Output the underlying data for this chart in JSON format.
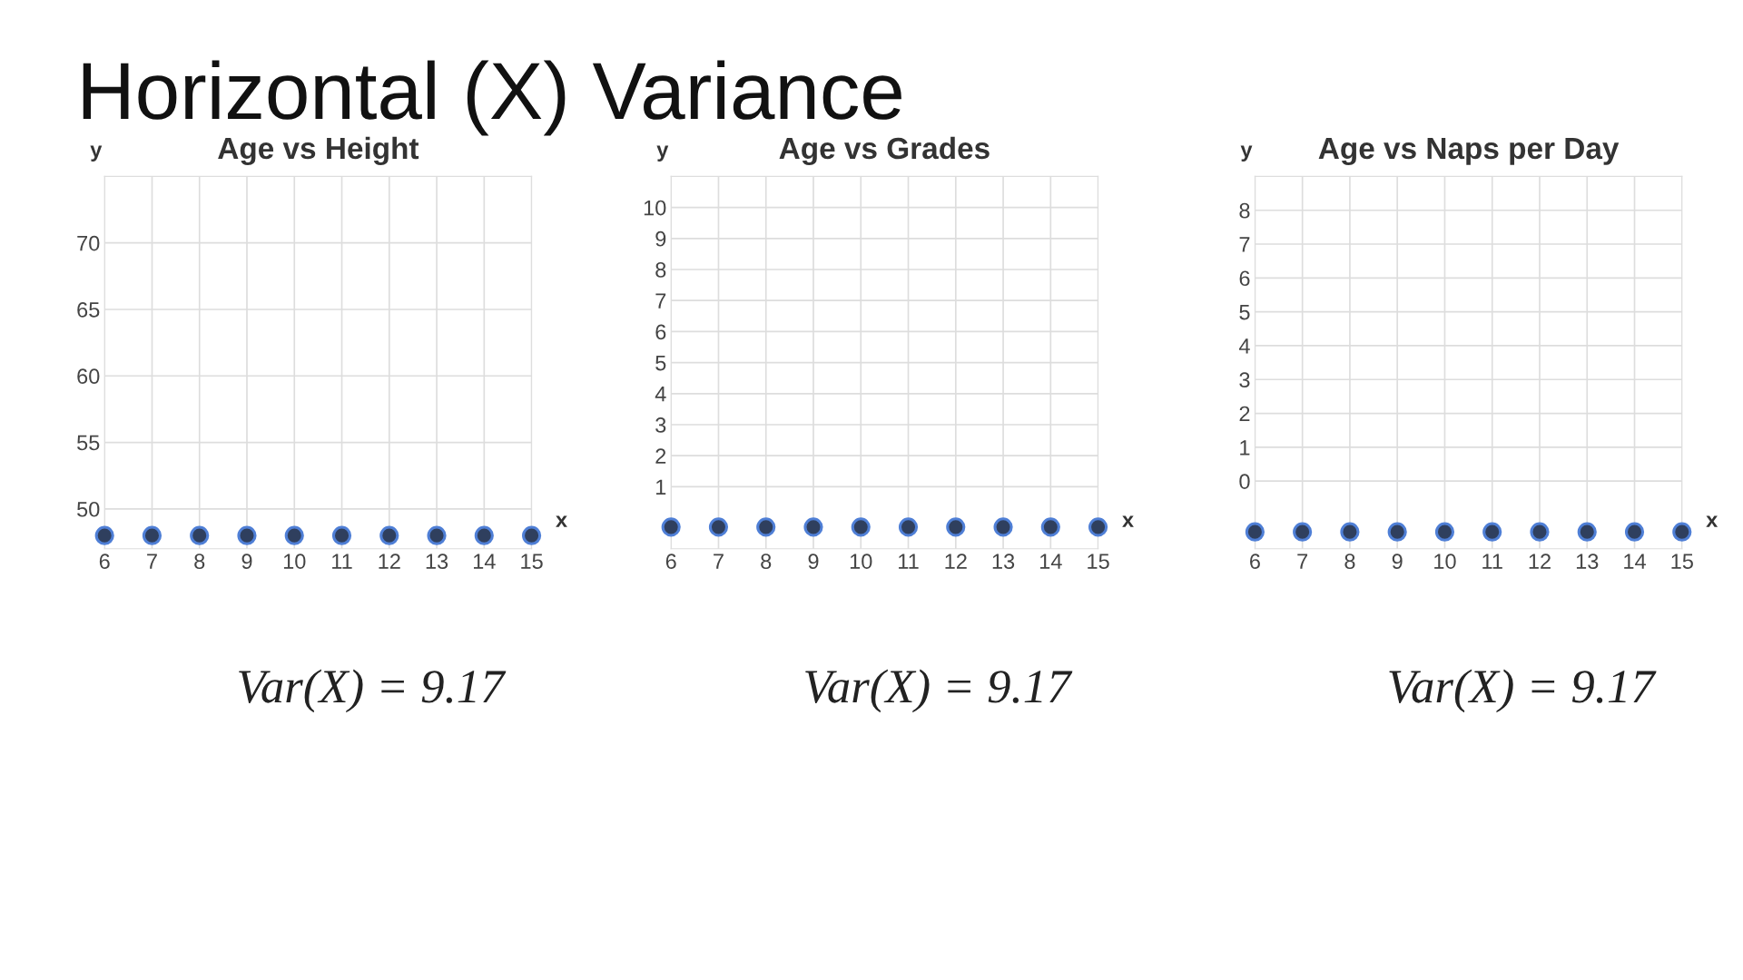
{
  "chart_data": [
    {
      "type": "scatter",
      "title": "Age vs Height",
      "xlabel": "x",
      "ylabel": "y",
      "annotations": [
        "Horizontal (X) Variance",
        "Var(X) = 9.17"
      ],
      "x": [
        6,
        7,
        8,
        9,
        10,
        11,
        12,
        13,
        14,
        15
      ],
      "values": [
        48,
        48,
        48,
        48,
        48,
        48,
        48,
        48,
        48,
        48
      ],
      "color": "#2f3f5e",
      "xlim": [
        6,
        15
      ],
      "xticks": [
        6,
        7,
        8,
        9,
        10,
        11,
        12,
        13,
        14,
        15
      ],
      "ylim": [
        47,
        75
      ],
      "yticks": [
        50,
        55,
        60,
        65,
        70
      ],
      "grid": true,
      "marker": "circle"
    },
    {
      "type": "scatter",
      "title": "Age vs Grades",
      "xlabel": "x",
      "ylabel": "y",
      "annotations": [
        "Var(X) = 9.17"
      ],
      "x": [
        6,
        7,
        8,
        9,
        10,
        11,
        12,
        13,
        14,
        15
      ],
      "values": [
        -0.3,
        -0.3,
        -0.3,
        -0.3,
        -0.3,
        -0.3,
        -0.3,
        -0.3,
        -0.3,
        -0.3
      ],
      "color": "#2f3f5e",
      "xlim": [
        6,
        15
      ],
      "xticks": [
        6,
        7,
        8,
        9,
        10,
        11,
        12,
        13,
        14,
        15
      ],
      "ylim": [
        -1,
        11
      ],
      "yticks": [
        1,
        2,
        3,
        4,
        5,
        6,
        7,
        8,
        9,
        10
      ],
      "grid": true,
      "marker": "circle"
    },
    {
      "type": "scatter",
      "title": "Age vs Naps per Day",
      "xlabel": "x",
      "ylabel": "y",
      "annotations": [
        "Var(X) = 9.17"
      ],
      "x": [
        6,
        7,
        8,
        9,
        10,
        11,
        12,
        13,
        14,
        15
      ],
      "values": [
        -1.5,
        -1.5,
        -1.5,
        -1.5,
        -1.5,
        -1.5,
        -1.5,
        -1.5,
        -1.5,
        -1.5
      ],
      "color": "#2f3f5e",
      "xlim": [
        6,
        15
      ],
      "xticks": [
        6,
        7,
        8,
        9,
        10,
        11,
        12,
        13,
        14,
        15
      ],
      "ylim": [
        -2,
        9
      ],
      "yticks": [
        0,
        1,
        2,
        3,
        4,
        5,
        6,
        7,
        8
      ],
      "grid": true,
      "marker": "circle"
    }
  ]
}
